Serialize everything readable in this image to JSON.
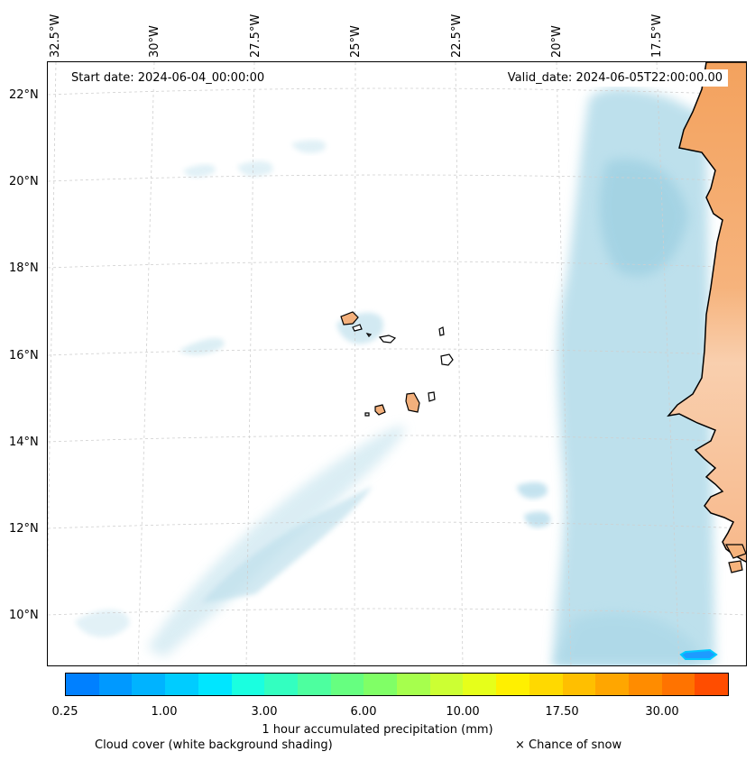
{
  "map": {
    "lon_labels": [
      "32.5°W",
      "30°W",
      "27.5°W",
      "25°W",
      "22.5°W",
      "20°W",
      "17.5°W"
    ],
    "lat_labels": [
      "22°N",
      "20°N",
      "18°N",
      "16°N",
      "14°N",
      "12°N",
      "10°N"
    ],
    "start_date": "Start date: 2024-06-04_00:00:00",
    "valid_date": "Valid_date: 2024-06-05T22:00:00.00"
  },
  "colorbar": {
    "colors": [
      "#0080ff",
      "#0099ff",
      "#00b3ff",
      "#00ccff",
      "#00e6ff",
      "#1affe0",
      "#33ffc0",
      "#4dff9f",
      "#66ff80",
      "#80ff66",
      "#a6ff4d",
      "#ccff33",
      "#e6ff1a",
      "#fff000",
      "#ffd900",
      "#ffbf00",
      "#ffa600",
      "#ff8c00",
      "#ff7300",
      "#ff4d00"
    ],
    "ticks": [
      "0.25",
      "1.00",
      "3.00",
      "6.00",
      "10.00",
      "17.50",
      "30.00"
    ],
    "label": "1 hour accumulated precipitation (mm)"
  },
  "legend": {
    "cloud": "Cloud cover (white background shading)",
    "snow": "× Chance of snow"
  }
}
